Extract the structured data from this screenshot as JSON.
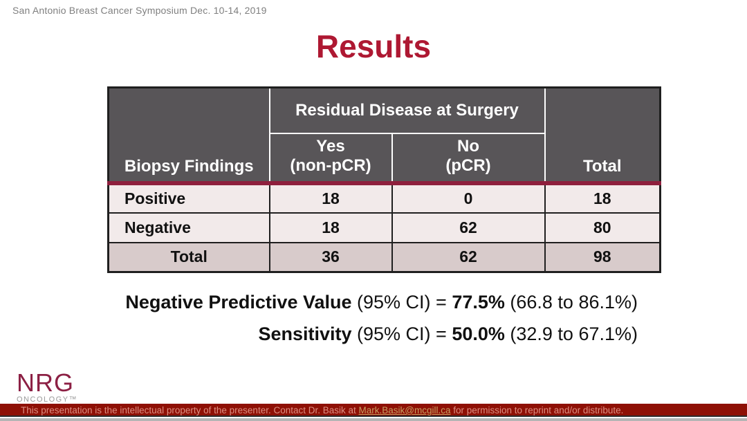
{
  "conference_header": "San Antonio Breast Cancer Symposium Dec. 10-14, 2019",
  "title": "Results",
  "colors": {
    "title_crimson": "#AE1832",
    "table_header_gray": "#585558",
    "header_separator_maroon": "#8E1F3D",
    "body_row_pink": "#F2EAEA",
    "total_row_pink": "#D8CBCB",
    "banner_red": "#8E1005",
    "banner_text": "#DE8E82",
    "banner_link_gold": "#C79F62"
  },
  "table": {
    "corner_header": "Biopsy Findings",
    "group_header": "Residual Disease at Surgery",
    "sub_headers": [
      {
        "line1": "Yes",
        "line2": "(non-pCR)"
      },
      {
        "line1": "No",
        "line2": "(pCR)"
      }
    ],
    "total_header": "Total",
    "rows": [
      {
        "label": "Positive",
        "values": [
          "18",
          "0",
          "18"
        ]
      },
      {
        "label": "Negative",
        "values": [
          "18",
          "62",
          "80"
        ]
      },
      {
        "label": "Total",
        "values": [
          "36",
          "62",
          "98"
        ]
      }
    ]
  },
  "stats": [
    {
      "name": "Negative Predictive Value",
      "mid": " (95% CI) = ",
      "value": "77.5%",
      "ci": " (66.8 to 86.1%)"
    },
    {
      "name": "Sensitivity",
      "mid": " (95% CI) = ",
      "value": "50.0%",
      "ci": " (32.9 to 67.1%)"
    }
  ],
  "logo": {
    "name": "NRG",
    "sub": "ONCOLOGY™"
  },
  "footer": {
    "pre": "This presentation is the intellectual property of the presenter. Contact Dr. Basik at ",
    "email": "Mark.Basik@mcgill.ca",
    "post": " for permission to reprint and/or distribute."
  }
}
